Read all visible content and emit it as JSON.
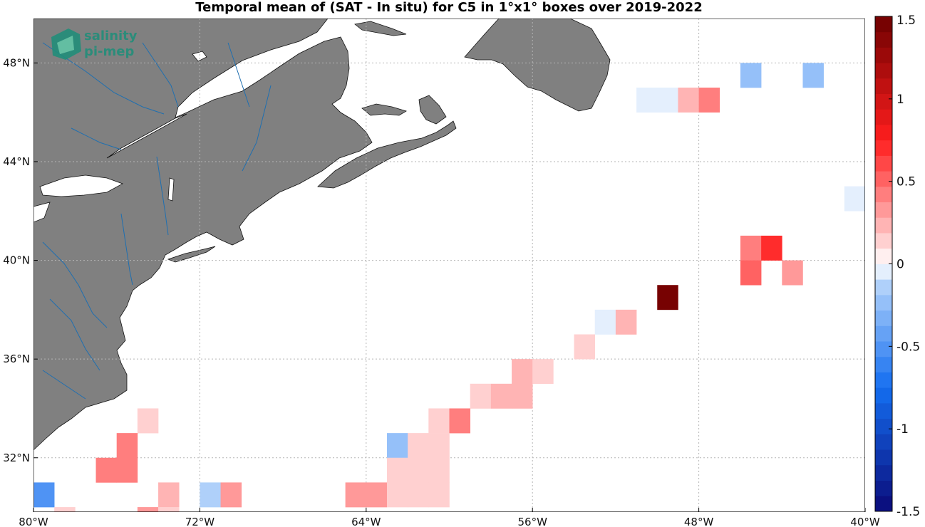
{
  "title": "Temporal mean of (SAT - In situ) for C5 in 1°x1° boxes over 2019-2022",
  "logo": {
    "line1": "salinity",
    "line2": "pi-mep"
  },
  "map": {
    "lon_range": [
      -80,
      -40
    ],
    "lat_range": [
      29.8,
      49.8
    ],
    "grid": "dotted",
    "land_color": "#808080",
    "river_color": "#1f6fb0",
    "xticks": [
      {
        "value": -80,
        "label": "80°W"
      },
      {
        "value": -72,
        "label": "72°W"
      },
      {
        "value": -64,
        "label": "64°W"
      },
      {
        "value": -56,
        "label": "56°W"
      },
      {
        "value": -48,
        "label": "48°W"
      },
      {
        "value": -40,
        "label": "40°W"
      }
    ],
    "yticks": [
      {
        "value": 32,
        "label": "32°N"
      },
      {
        "value": 36,
        "label": "36°N"
      },
      {
        "value": 40,
        "label": "40°N"
      },
      {
        "value": 44,
        "label": "44°N"
      },
      {
        "value": 48,
        "label": "48°N"
      }
    ]
  },
  "boxes": [
    {
      "lon": -46,
      "lat": 47,
      "value": -0.2
    },
    {
      "lon": -43,
      "lat": 47,
      "value": -0.2
    },
    {
      "lon": -51,
      "lat": 46,
      "value": -0.05
    },
    {
      "lon": -50,
      "lat": 46,
      "value": -0.05
    },
    {
      "lon": -49,
      "lat": 46,
      "value": 0.25
    },
    {
      "lon": -48,
      "lat": 46,
      "value": 0.45
    },
    {
      "lon": -41,
      "lat": 42,
      "value": -0.08
    },
    {
      "lon": -46,
      "lat": 40,
      "value": 0.45
    },
    {
      "lon": -45,
      "lat": 40,
      "value": 0.7
    },
    {
      "lon": -46,
      "lat": 39,
      "value": 0.5
    },
    {
      "lon": -44,
      "lat": 39,
      "value": 0.35
    },
    {
      "lon": -50,
      "lat": 38,
      "value": 1.5
    },
    {
      "lon": -53,
      "lat": 37,
      "value": -0.08
    },
    {
      "lon": -52,
      "lat": 37,
      "value": 0.25
    },
    {
      "lon": -54,
      "lat": 36,
      "value": 0.1
    },
    {
      "lon": -57,
      "lat": 35,
      "value": 0.25
    },
    {
      "lon": -56,
      "lat": 35,
      "value": 0.12
    },
    {
      "lon": -59,
      "lat": 34,
      "value": 0.1
    },
    {
      "lon": -58,
      "lat": 34,
      "value": 0.25
    },
    {
      "lon": -57,
      "lat": 34,
      "value": 0.25
    },
    {
      "lon": -61,
      "lat": 33,
      "value": 0.12
    },
    {
      "lon": -60,
      "lat": 33,
      "value": 0.38
    },
    {
      "lon": -63,
      "lat": 32,
      "value": -0.2
    },
    {
      "lon": -62,
      "lat": 32,
      "value": 0.12
    },
    {
      "lon": -61,
      "lat": 32,
      "value": 0.12
    },
    {
      "lon": -63,
      "lat": 31,
      "value": 0.12
    },
    {
      "lon": -62,
      "lat": 31,
      "value": 0.12
    },
    {
      "lon": -61,
      "lat": 31,
      "value": 0.12
    },
    {
      "lon": -65,
      "lat": 30,
      "value": 0.3
    },
    {
      "lon": -64,
      "lat": 30,
      "value": 0.3
    },
    {
      "lon": -63,
      "lat": 30,
      "value": 0.12
    },
    {
      "lon": -62,
      "lat": 30,
      "value": 0.12
    },
    {
      "lon": -61,
      "lat": 30,
      "value": 0.12
    },
    {
      "lon": -75,
      "lat": 33,
      "value": 0.12
    },
    {
      "lon": -76,
      "lat": 32,
      "value": 0.4
    },
    {
      "lon": -76,
      "lat": 31,
      "value": 0.4
    },
    {
      "lon": -77,
      "lat": 31,
      "value": 0.4
    },
    {
      "lon": -80,
      "lat": 30,
      "value": -0.5
    },
    {
      "lon": -79,
      "lat": 29,
      "value": 0.1
    },
    {
      "lon": -74,
      "lat": 30,
      "value": 0.25
    },
    {
      "lon": -75,
      "lat": 29,
      "value": 0.3
    },
    {
      "lon": -74,
      "lat": 29,
      "value": 0.12
    },
    {
      "lon": -72,
      "lat": 30,
      "value": -0.1
    },
    {
      "lon": -71,
      "lat": 30,
      "value": 0.3
    }
  ],
  "colorbar": {
    "range": [
      -1.5,
      1.5
    ],
    "levels": 32,
    "ticks": [
      {
        "value": 1.5,
        "label": "1.5"
      },
      {
        "value": 1,
        "label": "1"
      },
      {
        "value": 0.5,
        "label": "0.5"
      },
      {
        "value": 0,
        "label": "0"
      },
      {
        "value": -0.5,
        "label": "-0.5"
      },
      {
        "value": -1,
        "label": "-1"
      },
      {
        "value": -1.5,
        "label": "-1.5"
      }
    ]
  }
}
